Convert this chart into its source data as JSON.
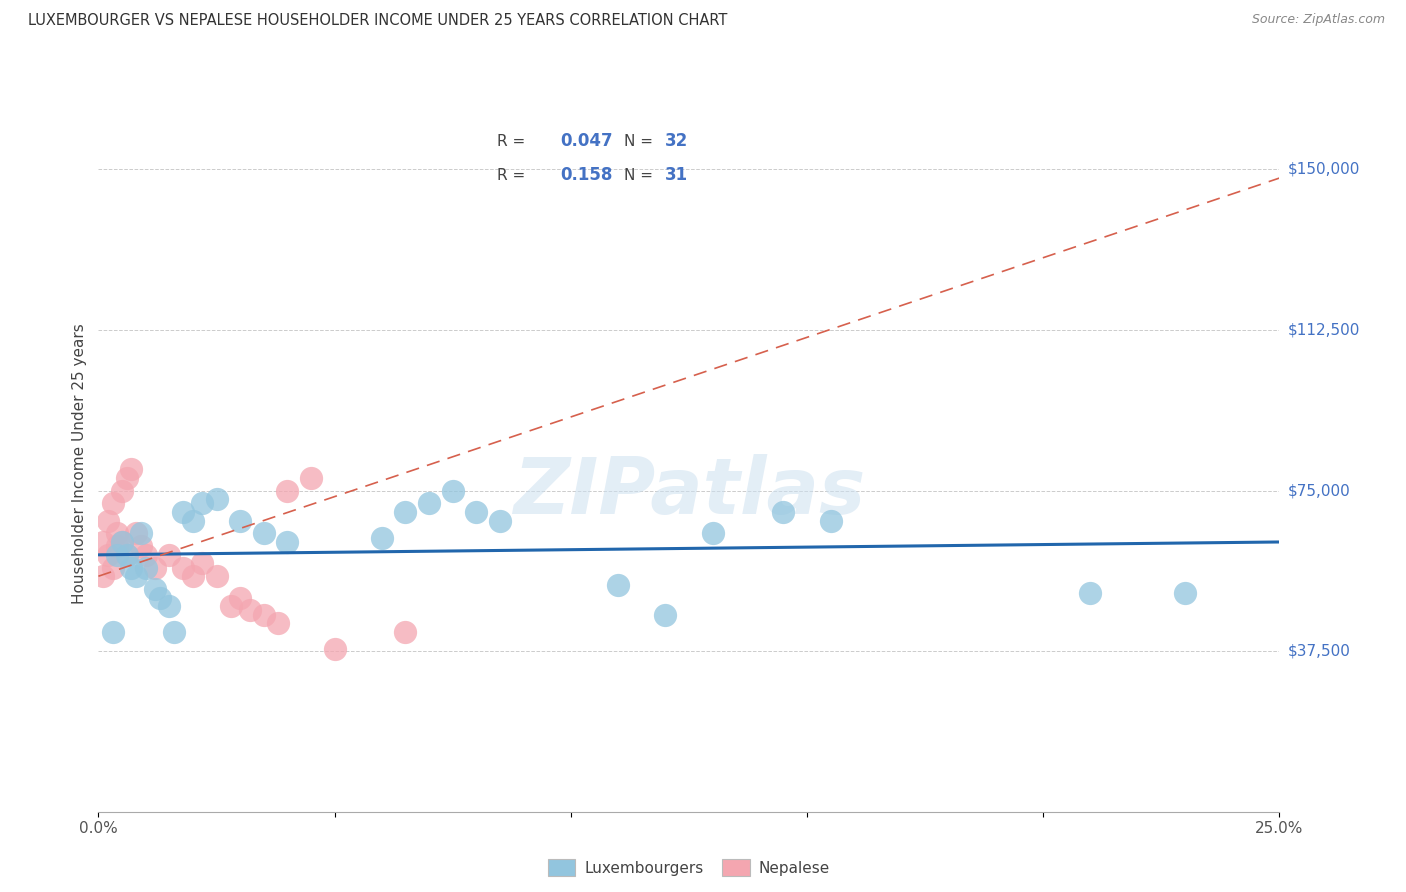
{
  "title": "LUXEMBOURGER VS NEPALESE HOUSEHOLDER INCOME UNDER 25 YEARS CORRELATION CHART",
  "source": "Source: ZipAtlas.com",
  "ylabel": "Householder Income Under 25 years",
  "xlim": [
    0.0,
    0.25
  ],
  "ylim": [
    0,
    162500
  ],
  "ytick_positions": [
    37500,
    75000,
    112500,
    150000
  ],
  "ytick_labels": [
    "$37,500",
    "$75,000",
    "$112,500",
    "$150,000"
  ],
  "blue_color": "#92c5de",
  "pink_color": "#f4a6b0",
  "trend_blue_color": "#2166ac",
  "trend_pink_color": "#d6604d",
  "watermark": "ZIPatlas",
  "blue_x": [
    0.003,
    0.004,
    0.005,
    0.006,
    0.007,
    0.008,
    0.009,
    0.01,
    0.012,
    0.013,
    0.015,
    0.016,
    0.018,
    0.02,
    0.022,
    0.025,
    0.03,
    0.035,
    0.04,
    0.06,
    0.065,
    0.07,
    0.075,
    0.08,
    0.085,
    0.11,
    0.12,
    0.13,
    0.145,
    0.155,
    0.21,
    0.23
  ],
  "blue_y": [
    42000,
    60000,
    63000,
    60000,
    57000,
    55000,
    65000,
    57000,
    52000,
    50000,
    48000,
    42000,
    70000,
    68000,
    72000,
    73000,
    68000,
    65000,
    63000,
    64000,
    70000,
    72000,
    75000,
    70000,
    68000,
    53000,
    46000,
    65000,
    70000,
    68000,
    51000,
    51000
  ],
  "pink_x": [
    0.001,
    0.001,
    0.002,
    0.002,
    0.003,
    0.003,
    0.004,
    0.004,
    0.005,
    0.005,
    0.006,
    0.006,
    0.007,
    0.008,
    0.009,
    0.01,
    0.012,
    0.015,
    0.018,
    0.02,
    0.022,
    0.025,
    0.028,
    0.03,
    0.032,
    0.035,
    0.038,
    0.04,
    0.045,
    0.05,
    0.065
  ],
  "pink_y": [
    55000,
    63000,
    60000,
    68000,
    57000,
    72000,
    62000,
    65000,
    63000,
    75000,
    60000,
    78000,
    80000,
    65000,
    62000,
    60000,
    57000,
    60000,
    57000,
    55000,
    58000,
    55000,
    48000,
    50000,
    47000,
    46000,
    44000,
    75000,
    78000,
    38000,
    42000
  ],
  "blue_trend_x": [
    0.0,
    0.25
  ],
  "blue_trend_y": [
    60000,
    63000
  ],
  "pink_trend_x": [
    0.0,
    0.25
  ],
  "pink_trend_y": [
    55000,
    148000
  ]
}
